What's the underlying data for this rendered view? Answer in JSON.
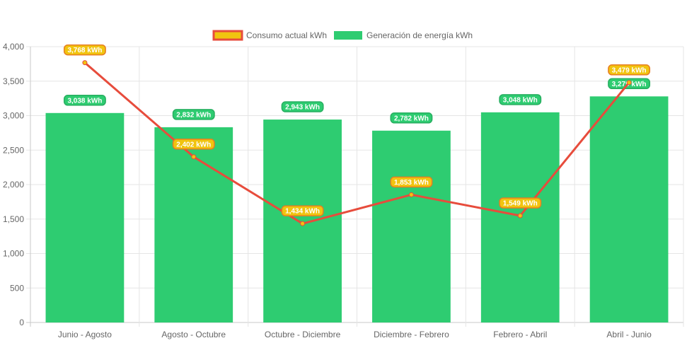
{
  "chart_data": {
    "type": "bar",
    "categories": [
      "Junio - Agosto",
      "Agosto - Octubre",
      "Octubre - Diciembre",
      "Diciembre - Febrero",
      "Febrero - Abril",
      "Abril - Junio"
    ],
    "series": [
      {
        "name": "Consumo actual kWh",
        "type": "line",
        "values": [
          3768,
          2402,
          1434,
          1853,
          1549,
          3479
        ],
        "labels": [
          "3,768 kWh",
          "2,402 kWh",
          "1,434 kWh",
          "1,853 kWh",
          "1,549 kWh",
          "3,479 kWh"
        ]
      },
      {
        "name": "Generación de energía kWh",
        "type": "bar",
        "values": [
          3038,
          2832,
          2943,
          2782,
          3048,
          3279
        ],
        "labels": [
          "3,038 kWh",
          "2,832 kWh",
          "2,943 kWh",
          "2,782 kWh",
          "3,048 kWh",
          "3,279 kWh"
        ]
      }
    ],
    "y_ticks": [
      "0",
      "500",
      "1,000",
      "1,500",
      "2,000",
      "2,500",
      "3,000",
      "3,500",
      "4,000"
    ],
    "ylim": [
      0,
      4000
    ],
    "grid": true,
    "legend_position": "top",
    "colors": {
      "line": "#e74c3c",
      "line_label_bg": "#f1c40f",
      "bar": "#2ecc71",
      "bar_label_border": "#27ae60",
      "grid": "#e5e5e5",
      "axis": "#c8c8c8"
    }
  }
}
